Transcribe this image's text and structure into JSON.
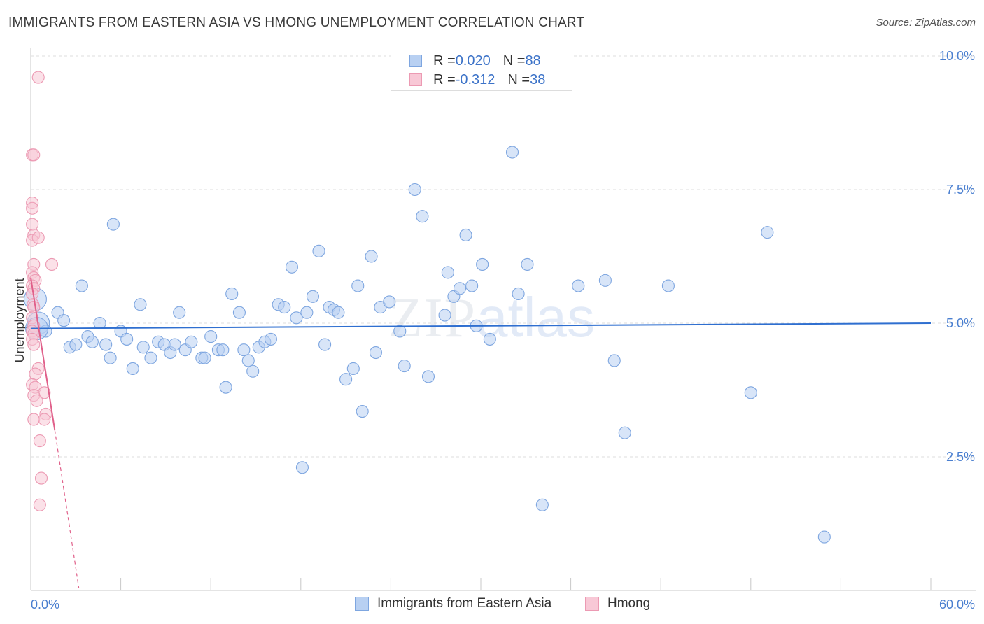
{
  "title": "IMMIGRANTS FROM EASTERN ASIA VS HMONG UNEMPLOYMENT CORRELATION CHART",
  "source": "Source: ZipAtlas.com",
  "watermark": {
    "zip": "ZIP",
    "atlas": "atlas"
  },
  "legend_top": [
    {
      "r_label": "R = ",
      "r_value": "0.020",
      "n_label": "N = ",
      "n_value": "88",
      "color": "#b8d0f2",
      "border": "#7ea6e0"
    },
    {
      "r_label": "R = ",
      "r_value": "-0.312",
      "n_label": "N = ",
      "n_value": "38",
      "color": "#f8c8d6",
      "border": "#ec9ab3"
    }
  ],
  "legend_bottom": [
    {
      "label": "Immigrants from Eastern Asia",
      "color": "#b8d0f2",
      "border": "#7ea6e0"
    },
    {
      "label": "Hmong",
      "color": "#f8c8d6",
      "border": "#ec9ab3"
    }
  ],
  "chart_data": {
    "type": "scatter",
    "title": "IMMIGRANTS FROM EASTERN ASIA VS HMONG UNEMPLOYMENT CORRELATION CHART",
    "ylabel": "Unemployment",
    "xlabel": "",
    "xlim": [
      0,
      60
    ],
    "ylim": [
      0,
      10.5
    ],
    "x_tick_labels": [
      {
        "value": 0,
        "label": "0.0%"
      },
      {
        "value": 60,
        "label": "60.0%"
      }
    ],
    "y_tick_labels": [
      {
        "value": 2.5,
        "label": "2.5%"
      },
      {
        "value": 5.0,
        "label": "5.0%"
      },
      {
        "value": 7.5,
        "label": "7.5%"
      },
      {
        "value": 10.0,
        "label": "10.0%"
      }
    ],
    "grid": true,
    "series": [
      {
        "name": "Immigrants from Eastern Asia",
        "color": "#7ea6e0",
        "fill": "#b8d0f2",
        "trend": {
          "x": [
            0,
            60
          ],
          "y": [
            4.9,
            5.0
          ]
        },
        "points": [
          [
            0.3,
            5.45
          ],
          [
            0.5,
            5.0
          ],
          [
            1.0,
            4.85
          ],
          [
            1.8,
            5.2
          ],
          [
            2.2,
            5.05
          ],
          [
            2.6,
            4.55
          ],
          [
            3.0,
            4.6
          ],
          [
            3.4,
            5.7
          ],
          [
            3.8,
            4.75
          ],
          [
            4.1,
            4.65
          ],
          [
            4.6,
            5.0
          ],
          [
            5.0,
            4.6
          ],
          [
            5.3,
            4.35
          ],
          [
            5.5,
            6.85
          ],
          [
            6.0,
            4.85
          ],
          [
            6.4,
            4.7
          ],
          [
            6.8,
            4.15
          ],
          [
            7.3,
            5.35
          ],
          [
            7.5,
            4.55
          ],
          [
            8.0,
            4.35
          ],
          [
            8.5,
            4.65
          ],
          [
            8.9,
            4.6
          ],
          [
            9.3,
            4.45
          ],
          [
            9.6,
            4.6
          ],
          [
            9.9,
            5.2
          ],
          [
            10.3,
            4.5
          ],
          [
            10.7,
            4.65
          ],
          [
            11.4,
            4.35
          ],
          [
            11.6,
            4.35
          ],
          [
            12.0,
            4.75
          ],
          [
            12.5,
            4.5
          ],
          [
            12.8,
            4.5
          ],
          [
            13.0,
            3.8
          ],
          [
            13.4,
            5.55
          ],
          [
            13.9,
            5.2
          ],
          [
            14.2,
            4.5
          ],
          [
            14.5,
            4.3
          ],
          [
            14.8,
            4.1
          ],
          [
            15.2,
            4.55
          ],
          [
            15.6,
            4.65
          ],
          [
            16.0,
            4.7
          ],
          [
            16.5,
            5.35
          ],
          [
            16.9,
            5.3
          ],
          [
            17.4,
            6.05
          ],
          [
            17.7,
            5.1
          ],
          [
            18.1,
            2.3
          ],
          [
            18.4,
            5.2
          ],
          [
            18.8,
            5.5
          ],
          [
            19.2,
            6.35
          ],
          [
            19.6,
            4.6
          ],
          [
            19.9,
            5.3
          ],
          [
            20.2,
            5.25
          ],
          [
            20.5,
            5.2
          ],
          [
            21.0,
            3.95
          ],
          [
            21.5,
            4.15
          ],
          [
            21.8,
            5.7
          ],
          [
            22.1,
            3.35
          ],
          [
            22.7,
            6.25
          ],
          [
            23.0,
            4.45
          ],
          [
            23.3,
            5.3
          ],
          [
            23.9,
            5.4
          ],
          [
            24.6,
            4.85
          ],
          [
            24.9,
            4.2
          ],
          [
            25.6,
            7.5
          ],
          [
            26.1,
            7.0
          ],
          [
            26.5,
            4.0
          ],
          [
            27.6,
            5.15
          ],
          [
            27.8,
            5.95
          ],
          [
            28.2,
            5.5
          ],
          [
            28.6,
            5.65
          ],
          [
            29.0,
            6.65
          ],
          [
            29.4,
            5.7
          ],
          [
            29.7,
            4.95
          ],
          [
            30.1,
            6.1
          ],
          [
            30.6,
            4.7
          ],
          [
            32.1,
            8.2
          ],
          [
            32.5,
            5.55
          ],
          [
            33.1,
            6.1
          ],
          [
            34.1,
            1.6
          ],
          [
            36.5,
            5.7
          ],
          [
            38.3,
            5.8
          ],
          [
            38.9,
            4.3
          ],
          [
            39.6,
            2.95
          ],
          [
            42.5,
            5.7
          ],
          [
            48.0,
            3.7
          ],
          [
            49.1,
            6.7
          ],
          [
            52.9,
            1.0
          ],
          [
            0.4,
            4.9
          ]
        ]
      },
      {
        "name": "Hmong",
        "color": "#ec9ab3",
        "fill": "#f8c8d6",
        "trend": {
          "x": [
            0,
            1.6
          ],
          "y": [
            5.85,
            3.0
          ]
        },
        "trend_ext": {
          "x": [
            1.6,
            3.2
          ],
          "y": [
            3.0,
            0.05
          ]
        },
        "points": [
          [
            0.5,
            9.6
          ],
          [
            0.1,
            8.15
          ],
          [
            0.2,
            8.15
          ],
          [
            0.1,
            7.25
          ],
          [
            0.1,
            7.15
          ],
          [
            0.1,
            6.85
          ],
          [
            0.2,
            6.65
          ],
          [
            0.1,
            6.55
          ],
          [
            0.5,
            6.6
          ],
          [
            1.4,
            6.1
          ],
          [
            0.2,
            6.1
          ],
          [
            0.1,
            5.95
          ],
          [
            0.2,
            5.85
          ],
          [
            0.3,
            5.8
          ],
          [
            0.1,
            5.7
          ],
          [
            0.2,
            5.65
          ],
          [
            0.1,
            5.55
          ],
          [
            0.15,
            5.35
          ],
          [
            0.2,
            5.3
          ],
          [
            0.1,
            5.1
          ],
          [
            0.2,
            4.95
          ],
          [
            0.1,
            4.85
          ],
          [
            0.2,
            4.8
          ],
          [
            0.1,
            4.7
          ],
          [
            0.2,
            4.6
          ],
          [
            0.5,
            4.15
          ],
          [
            0.3,
            4.05
          ],
          [
            0.1,
            3.85
          ],
          [
            0.3,
            3.8
          ],
          [
            0.9,
            3.7
          ],
          [
            0.2,
            3.65
          ],
          [
            0.4,
            3.55
          ],
          [
            1.0,
            3.3
          ],
          [
            0.2,
            3.2
          ],
          [
            0.9,
            3.2
          ],
          [
            0.6,
            2.8
          ],
          [
            0.7,
            2.1
          ],
          [
            0.6,
            1.6
          ]
        ]
      }
    ]
  }
}
